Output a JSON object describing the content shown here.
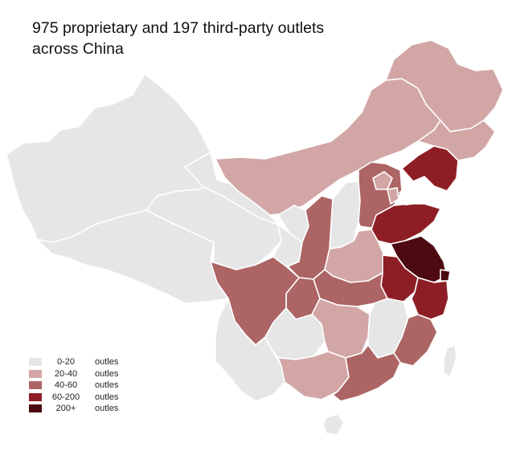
{
  "title": {
    "line1": "975 proprietary and 197 third-party outlets",
    "line2": "across China"
  },
  "legend": {
    "items": [
      {
        "range": "0-20",
        "unit": "outles",
        "color": "#e6e6e6"
      },
      {
        "range": "20-40",
        "unit": "outles",
        "color": "#d3a6a6"
      },
      {
        "range": "40-60",
        "unit": "outles",
        "color": "#ac6464"
      },
      {
        "range": "60-200",
        "unit": "outles",
        "color": "#8e1e26"
      },
      {
        "range": "200+",
        "unit": "outles",
        "color": "#4d0a10"
      }
    ]
  },
  "colors": {
    "c0": "#e6e6e6",
    "c1": "#d3a6a6",
    "c2": "#ac6464",
    "c3": "#8e1e26",
    "c4": "#4d0a10",
    "water": "#ffffff"
  }
}
